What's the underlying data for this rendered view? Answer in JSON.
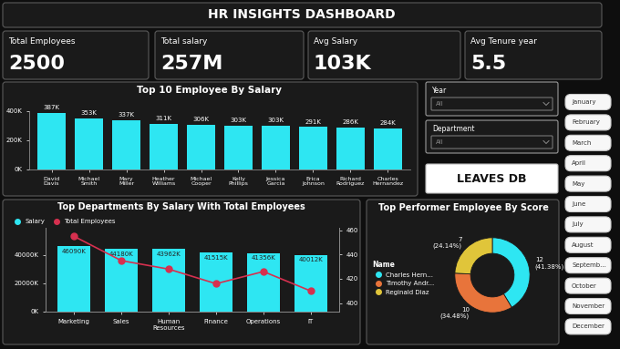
{
  "header": {
    "title": "HR INSIGHTS DASHBOARD"
  },
  "kpis": [
    {
      "label": "Total Employees",
      "value": "2500"
    },
    {
      "label": "Total salary",
      "value": "257M"
    },
    {
      "label": "Avg Salary",
      "value": "103K"
    },
    {
      "label": "Avg Tenure year",
      "value": "5.5"
    }
  ],
  "chart_data": [
    {
      "type": "bar",
      "title": "Top 10 Employee By Salary",
      "categories": [
        "David Davis",
        "Michael Smith",
        "Mary Miller",
        "Heather Williams",
        "Michael Cooper",
        "Kelly Phillips",
        "Jessica Garcia",
        "Erica Johnson",
        "Richard Rodriguez",
        "Charles Hernandez"
      ],
      "values": [
        387000,
        353000,
        337000,
        311000,
        306000,
        303000,
        303000,
        291000,
        286000,
        284000
      ],
      "value_labels": [
        "387K",
        "353K",
        "337K",
        "311K",
        "306K",
        "303K",
        "303K",
        "291K",
        "286K",
        "284K"
      ],
      "color": "#2ee6f2",
      "ylim": [
        0,
        400000
      ],
      "yticks": [
        {
          "value": 0,
          "label": "0K"
        },
        {
          "value": 200000,
          "label": "200K"
        },
        {
          "value": 400000,
          "label": "400K"
        }
      ],
      "data_labels": true,
      "grid": false
    },
    {
      "type": "bar",
      "title": "Top Departments By Salary With Total Employees",
      "categories": [
        "Marketing",
        "Sales",
        "Human Resources",
        "Finance",
        "Operations",
        "IT"
      ],
      "series": [
        {
          "name": "Salary",
          "type": "bar",
          "color": "#2ee6f2",
          "values": [
            46090000,
            44180000,
            43962000,
            41515000,
            41356000,
            40012000
          ],
          "value_labels": [
            "46090K",
            "44180K",
            "43962K",
            "41515K",
            "41356K",
            "40012K"
          ]
        },
        {
          "name": "Total Employees",
          "type": "line",
          "axis": "y2",
          "color": "#d6304f",
          "marker": "o",
          "values": [
            455,
            435,
            428,
            416,
            426,
            410
          ]
        }
      ],
      "ylim": [
        0,
        59000000
      ],
      "yticks": [
        {
          "value": 0,
          "label": "0K"
        },
        {
          "value": 20000000,
          "label": "20000K"
        },
        {
          "value": 40000000,
          "label": "40000K"
        }
      ],
      "y2lim": [
        393,
        462
      ],
      "y2ticks": [
        400,
        420,
        440,
        460
      ],
      "legend": "upper left",
      "data_labels": true,
      "grid": false
    },
    {
      "type": "pie",
      "title": "Top Performer Employee By Score",
      "categories": [
        "Charles Hern...",
        "Timothy Andr...",
        "Reginald Diaz"
      ],
      "values": [
        12,
        10,
        7
      ],
      "value_labels": [
        "12 (41.38%)",
        "10 (34.48%)",
        "7 (24.14%)"
      ],
      "colors": [
        "#2ee6f2",
        "#e8743b",
        "#e0c53a"
      ],
      "legend": "center left",
      "legend_title": "Name",
      "data_labels": true
    }
  ],
  "filters": [
    {
      "label": "Year",
      "value": "All"
    },
    {
      "label": "Department",
      "value": "All"
    }
  ],
  "button": "LEAVES DB",
  "months": [
    "January",
    "February",
    "March",
    "April",
    "May",
    "June",
    "July",
    "August",
    "Septemb...",
    "October",
    "November",
    "December"
  ]
}
